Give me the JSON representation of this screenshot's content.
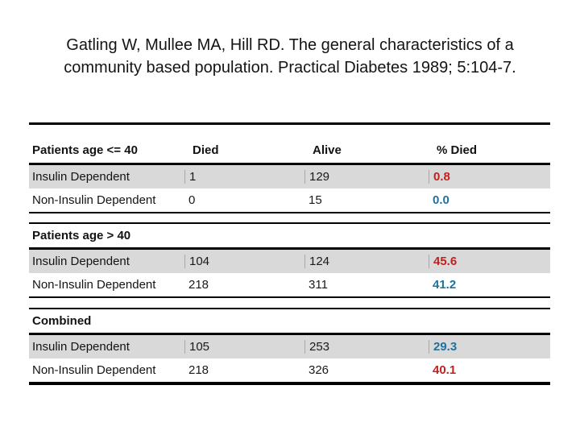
{
  "title": {
    "lines": [
      "Gatling W, Mullee MA, Hill RD. The general characteristics of a",
      "community based population. Practical Diabetes 1989; 5:104-7."
    ]
  },
  "table": {
    "column_headers": {
      "group": "Patients age <= 40",
      "died": "Died",
      "alive": "Alive",
      "pct_died": "% Died"
    },
    "sections": [
      {
        "name": "Patients age <= 40",
        "rows": [
          {
            "label": "Insulin Dependent",
            "died": "1",
            "alive": "129",
            "pct": "0.8",
            "pct_color": "red",
            "shaded": true
          },
          {
            "label": "Non-Insulin Dependent",
            "died": "0",
            "alive": "15",
            "pct": "0.0",
            "pct_color": "blue",
            "shaded": false
          }
        ]
      },
      {
        "name": "Patients age > 40",
        "rows": [
          {
            "label": "Insulin Dependent",
            "died": "104",
            "alive": "124",
            "pct": "45.6",
            "pct_color": "red",
            "shaded": true
          },
          {
            "label": "Non-Insulin Dependent",
            "died": "218",
            "alive": "311",
            "pct": "41.2",
            "pct_color": "blue",
            "shaded": false
          }
        ]
      },
      {
        "name": "Combined",
        "rows": [
          {
            "label": "Insulin Dependent",
            "died": "105",
            "alive": "253",
            "pct": "29.3",
            "pct_color": "blue",
            "shaded": true
          },
          {
            "label": "Non-Insulin Dependent",
            "died": "218",
            "alive": "326",
            "pct": "40.1",
            "pct_color": "red",
            "shaded": false
          }
        ]
      }
    ]
  },
  "colors": {
    "pct_red": "#c22121",
    "pct_blue": "#1f719e",
    "row_shade": "#d9d9d9",
    "rule_black": "#000000"
  }
}
